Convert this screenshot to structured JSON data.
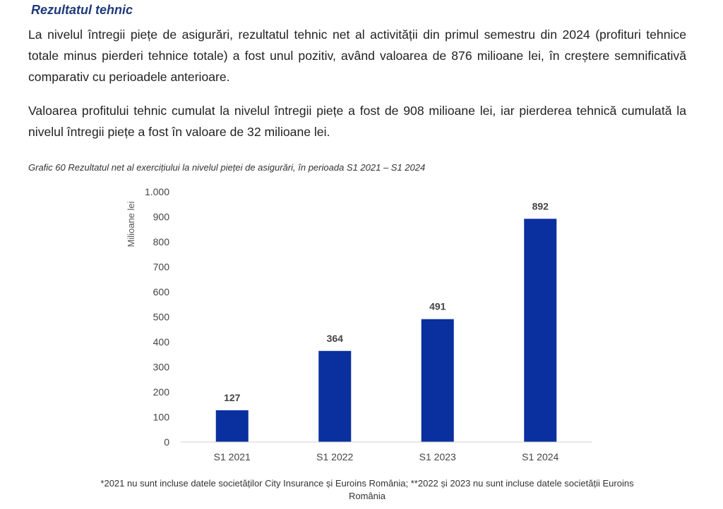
{
  "section_title": "Rezultatul tehnic",
  "paragraphs": [
    "La nivelul întregii piețe de asigurări, rezultatul tehnic net al activității din primul semestru din 2024 (profituri tehnice totale minus pierderi tehnice totale) a fost unul pozitiv, având valoarea de 876 milioane lei, în creștere semnificativă comparativ cu perioadele anterioare.",
    "Valoarea profitului tehnic cumulat la nivelul întregii piețe a fost de 908 milioane lei, iar pierderea tehnică cumulată la nivelul întregii piețe a fost în valoare de 32 milioane lei."
  ],
  "chart_caption": "Grafic 60 Rezultatul net al exercițiului la nivelul pieței de asigurări, în perioada S1 2021 – S1 2024",
  "chart_data": {
    "type": "bar",
    "categories": [
      "S1 2021",
      "S1 2022",
      "S1 2023",
      "S1 2024"
    ],
    "values": [
      127,
      364,
      491,
      892
    ],
    "data_labels": [
      "127",
      "364",
      "491",
      "892"
    ],
    "ylabel": "Milioane lei",
    "ylim": [
      0,
      1000
    ],
    "yticks": [
      0,
      100,
      200,
      300,
      400,
      500,
      600,
      700,
      800,
      900,
      1000
    ],
    "ytick_labels": [
      "0",
      "100",
      "200",
      "300",
      "400",
      "500",
      "600",
      "700",
      "800",
      "900",
      "1.000"
    ],
    "grid": false,
    "legend": "none",
    "bar_color": "#0a2f9e"
  },
  "footnote": {
    "line1": "*2021 nu sunt incluse datele societăților City Insurance și Euroins România; **2022 și 2023 nu sunt incluse datele societății Euroins",
    "line2": "România"
  }
}
